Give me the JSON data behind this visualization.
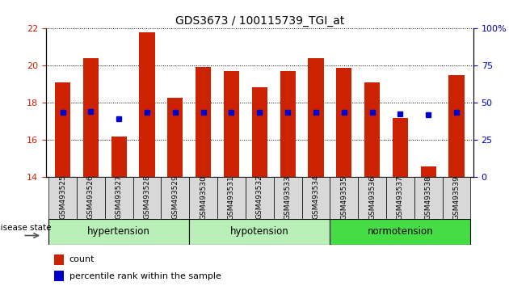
{
  "title": "GDS3673 / 100115739_TGI_at",
  "samples": [
    "GSM493525",
    "GSM493526",
    "GSM493527",
    "GSM493528",
    "GSM493529",
    "GSM493530",
    "GSM493531",
    "GSM493532",
    "GSM493533",
    "GSM493534",
    "GSM493535",
    "GSM493536",
    "GSM493537",
    "GSM493538",
    "GSM493539"
  ],
  "count_values": [
    19.1,
    20.4,
    16.2,
    21.8,
    18.3,
    19.95,
    19.7,
    18.85,
    19.7,
    20.4,
    19.9,
    19.1,
    17.2,
    14.6,
    19.5
  ],
  "percentile_values": [
    17.5,
    17.55,
    17.15,
    17.5,
    17.5,
    17.5,
    17.5,
    17.5,
    17.5,
    17.5,
    17.5,
    17.5,
    17.4,
    17.35,
    17.5
  ],
  "ymin": 14,
  "ymax": 22,
  "yticks_left": [
    14,
    16,
    18,
    20,
    22
  ],
  "yticks_right_vals": [
    0,
    25,
    50,
    75,
    100
  ],
  "bar_color": "#cc2200",
  "marker_color": "#0000cc",
  "tick_label_color_left": "#cc2200",
  "tick_label_color_right": "#0000cc",
  "group_defs": [
    {
      "label": "hypertension",
      "start": 0,
      "end": 4,
      "color": "#b8f0b8"
    },
    {
      "label": "hypotension",
      "start": 5,
      "end": 9,
      "color": "#b8f0b8"
    },
    {
      "label": "normotension",
      "start": 10,
      "end": 14,
      "color": "#44dd44"
    }
  ],
  "disease_state_label": "disease state"
}
